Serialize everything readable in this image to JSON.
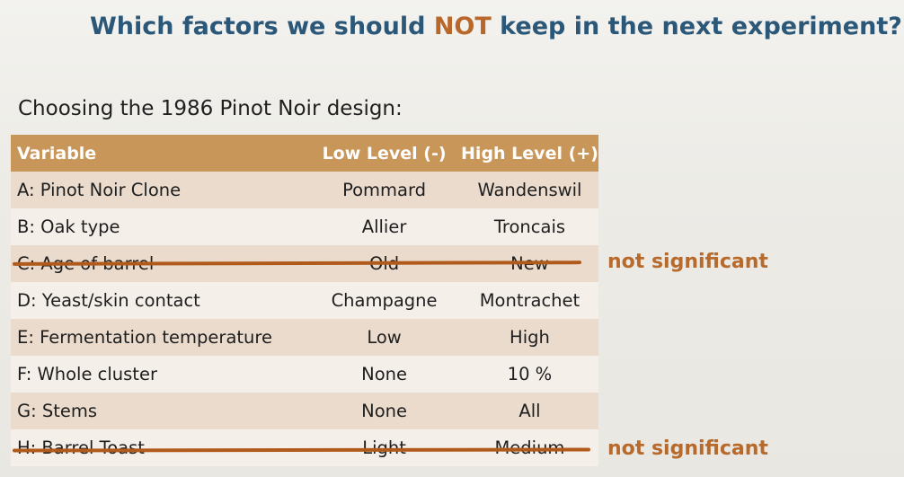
{
  "title": {
    "before": "Which factors we should ",
    "emphasis": "NOT",
    "after": " keep in the next experiment?"
  },
  "subtitle": "Choosing the 1986 Pinot Noir design:",
  "table": {
    "headers": [
      "Variable",
      "Low Level (-)",
      "High Level (+)"
    ],
    "rows": [
      {
        "variable": "A: Pinot Noir Clone",
        "low": "Pommard",
        "high": "Wandenswil"
      },
      {
        "variable": "B: Oak type",
        "low": "Allier",
        "high": "Troncais"
      },
      {
        "variable": "C: Age of barrel",
        "low": "Old",
        "high": "New"
      },
      {
        "variable": "D: Yeast/skin contact",
        "low": "Champagne",
        "high": "Montrachet"
      },
      {
        "variable": "E: Fermentation temperature",
        "low": "Low",
        "high": "High"
      },
      {
        "variable": "F: Whole cluster",
        "low": "None",
        "high": "10 %"
      },
      {
        "variable": "G: Stems",
        "low": "None",
        "high": "All"
      },
      {
        "variable": "H: Barrel Toast",
        "low": "Light",
        "high": "Medium"
      }
    ]
  },
  "annotations": {
    "row_c_note": "not significant",
    "row_h_note": "not significant",
    "strike_color": "#b05a1c"
  }
}
